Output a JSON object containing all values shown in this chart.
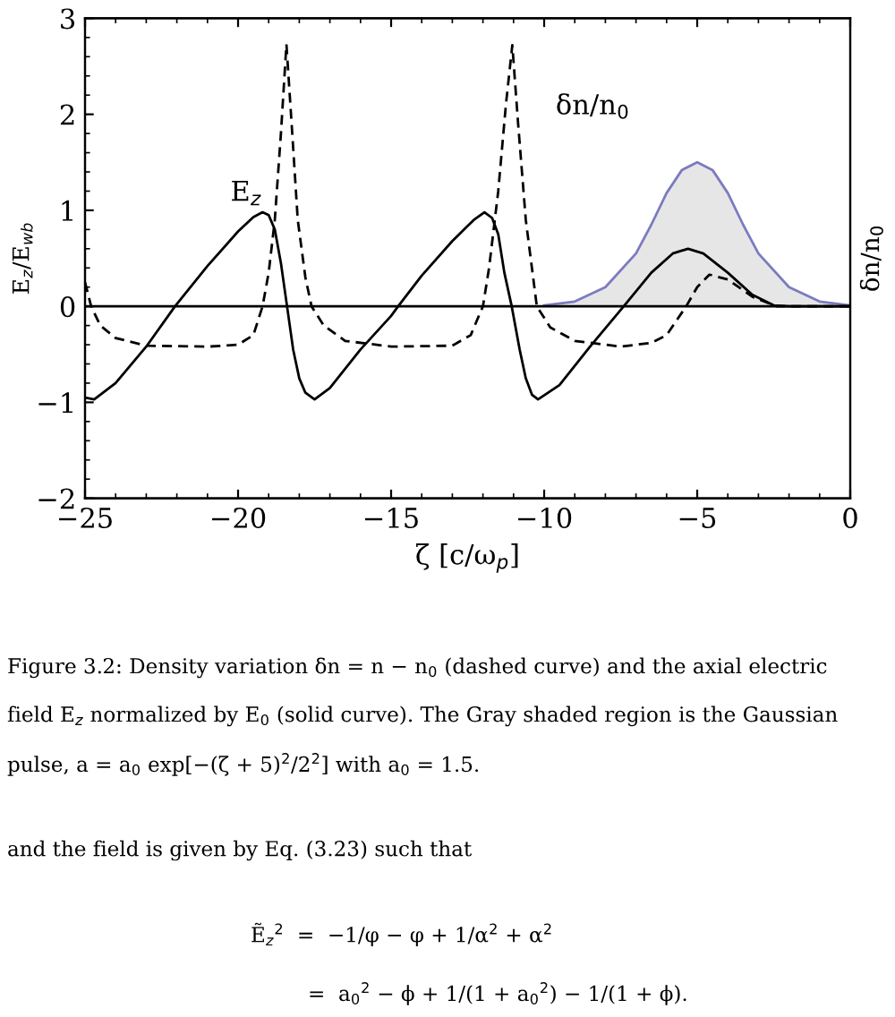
{
  "chart_data": {
    "type": "line",
    "xlabel": "ζ [c/ω$_{p}$]",
    "ylabel": "E$_{z}$/E$_{wb}$",
    "y2label": "δn/n$_{0}$",
    "xlim": [
      -25,
      0
    ],
    "ylim": [
      -2,
      3
    ],
    "xticks": [
      {
        "value": -25,
        "label": "−25"
      },
      {
        "value": -20,
        "label": "−20"
      },
      {
        "value": -15,
        "label": "−15"
      },
      {
        "value": -10,
        "label": "−10"
      },
      {
        "value": -5,
        "label": "−5"
      },
      0
    ],
    "yticks": [
      {
        "value": -2,
        "label": "−2"
      },
      {
        "value": -1,
        "label": "−1"
      },
      0,
      1,
      2,
      3
    ],
    "grid": false,
    "legend": false,
    "ref_lines": [
      {
        "axis": "y",
        "value": 0,
        "color": "#000000",
        "line_style": "solid"
      }
    ],
    "series": [
      {
        "type": "area",
        "color": "#7b7bbf",
        "x": [
          -10,
          -9,
          -8,
          -7,
          -6.5,
          -6,
          -5.5,
          -5,
          -4.5,
          -4,
          -3.5,
          -3,
          -2,
          -1,
          0
        ],
        "values": [
          0.01,
          0.05,
          0.2,
          0.55,
          0.85,
          1.18,
          1.42,
          1.5,
          1.42,
          1.18,
          0.85,
          0.55,
          0.2,
          0.05,
          0.01
        ]
      },
      {
        "color": "#000000",
        "line_style": "solid",
        "x": [
          -25,
          -24.7,
          -24,
          -23,
          -22.06,
          -21,
          -20,
          -19.5,
          -19.2,
          -19,
          -18.8,
          -18.6,
          -18.4,
          -18.2,
          -18,
          -17.8,
          -17.5,
          -17,
          -16,
          -15,
          -14.77,
          -14,
          -13,
          -12.3,
          -11.95,
          -11.7,
          -11.5,
          -11.3,
          -11.06,
          -10.8,
          -10.6,
          -10.4,
          -10.2,
          -9.5,
          -8.5,
          -7.4,
          -6.5,
          -5.8,
          -5.3,
          -4.8,
          -4,
          -3.2,
          -2.5,
          -2,
          0
        ],
        "values": [
          -0.95,
          -0.97,
          -0.8,
          -0.42,
          0,
          0.42,
          0.78,
          0.93,
          0.98,
          0.95,
          0.8,
          0.45,
          0,
          -0.45,
          -0.75,
          -0.9,
          -0.97,
          -0.85,
          -0.45,
          -0.1,
          0,
          0.32,
          0.68,
          0.9,
          0.98,
          0.92,
          0.75,
          0.35,
          0,
          -0.45,
          -0.75,
          -0.92,
          -0.97,
          -0.82,
          -0.42,
          0,
          0.35,
          0.55,
          0.6,
          0.55,
          0.35,
          0.12,
          0.01,
          0,
          0
        ]
      },
      {
        "color": "#000000",
        "line_style": "dashed",
        "x": [
          -25,
          -24.8,
          -24.5,
          -24,
          -23,
          -21,
          -20,
          -19.5,
          -19.2,
          -19,
          -18.8,
          -18.6,
          -18.42,
          -18.25,
          -18.05,
          -17.8,
          -17.6,
          -17.2,
          -16.5,
          -15,
          -13,
          -12.4,
          -12,
          -11.8,
          -11.5,
          -11.25,
          -11.04,
          -10.85,
          -10.6,
          -10.24,
          -9.8,
          -9,
          -7.5,
          -6.5,
          -6,
          -5.36,
          -5,
          -4.6,
          -4,
          -3.2,
          -2.4,
          0
        ],
        "values": [
          0.25,
          0,
          -0.2,
          -0.33,
          -0.41,
          -0.42,
          -0.4,
          -0.3,
          0,
          0.35,
          0.9,
          1.8,
          2.73,
          1.9,
          0.9,
          0.3,
          0,
          -0.2,
          -0.36,
          -0.42,
          -0.41,
          -0.3,
          0,
          0.4,
          1.2,
          2.1,
          2.72,
          1.9,
          0.9,
          0,
          -0.22,
          -0.36,
          -0.42,
          -0.38,
          -0.3,
          0,
          0.2,
          0.33,
          0.28,
          0.1,
          0,
          0
        ]
      }
    ],
    "annotations": [
      "E$_{z}$",
      "δn/n$_{0}$",
      "Figure 3.2: Density variation δn = n − n$_{0}$ (dashed curve) and the axial electric",
      "field E$_{z}$ normalized by E$_{0}$ (solid curve). The Gray shaded region is the Gaussian",
      "pulse, a = a$_{0}$ exp[−(ζ + 5)$^{2}$/2$^{2}$] with a$_{0}$ = 1.5.",
      "and the field is given by Eq. (3.23) such that",
      "Ẽ$_{z}$$^{2}$  =  −1/φ − φ + 1/α$^{2}$ + α$^{2}$",
      "=  a$_{0}$$^{2}$ − ϕ + 1/(1 + a$_{0}$$^{2}$) − 1/(1 + ϕ)."
    ]
  }
}
